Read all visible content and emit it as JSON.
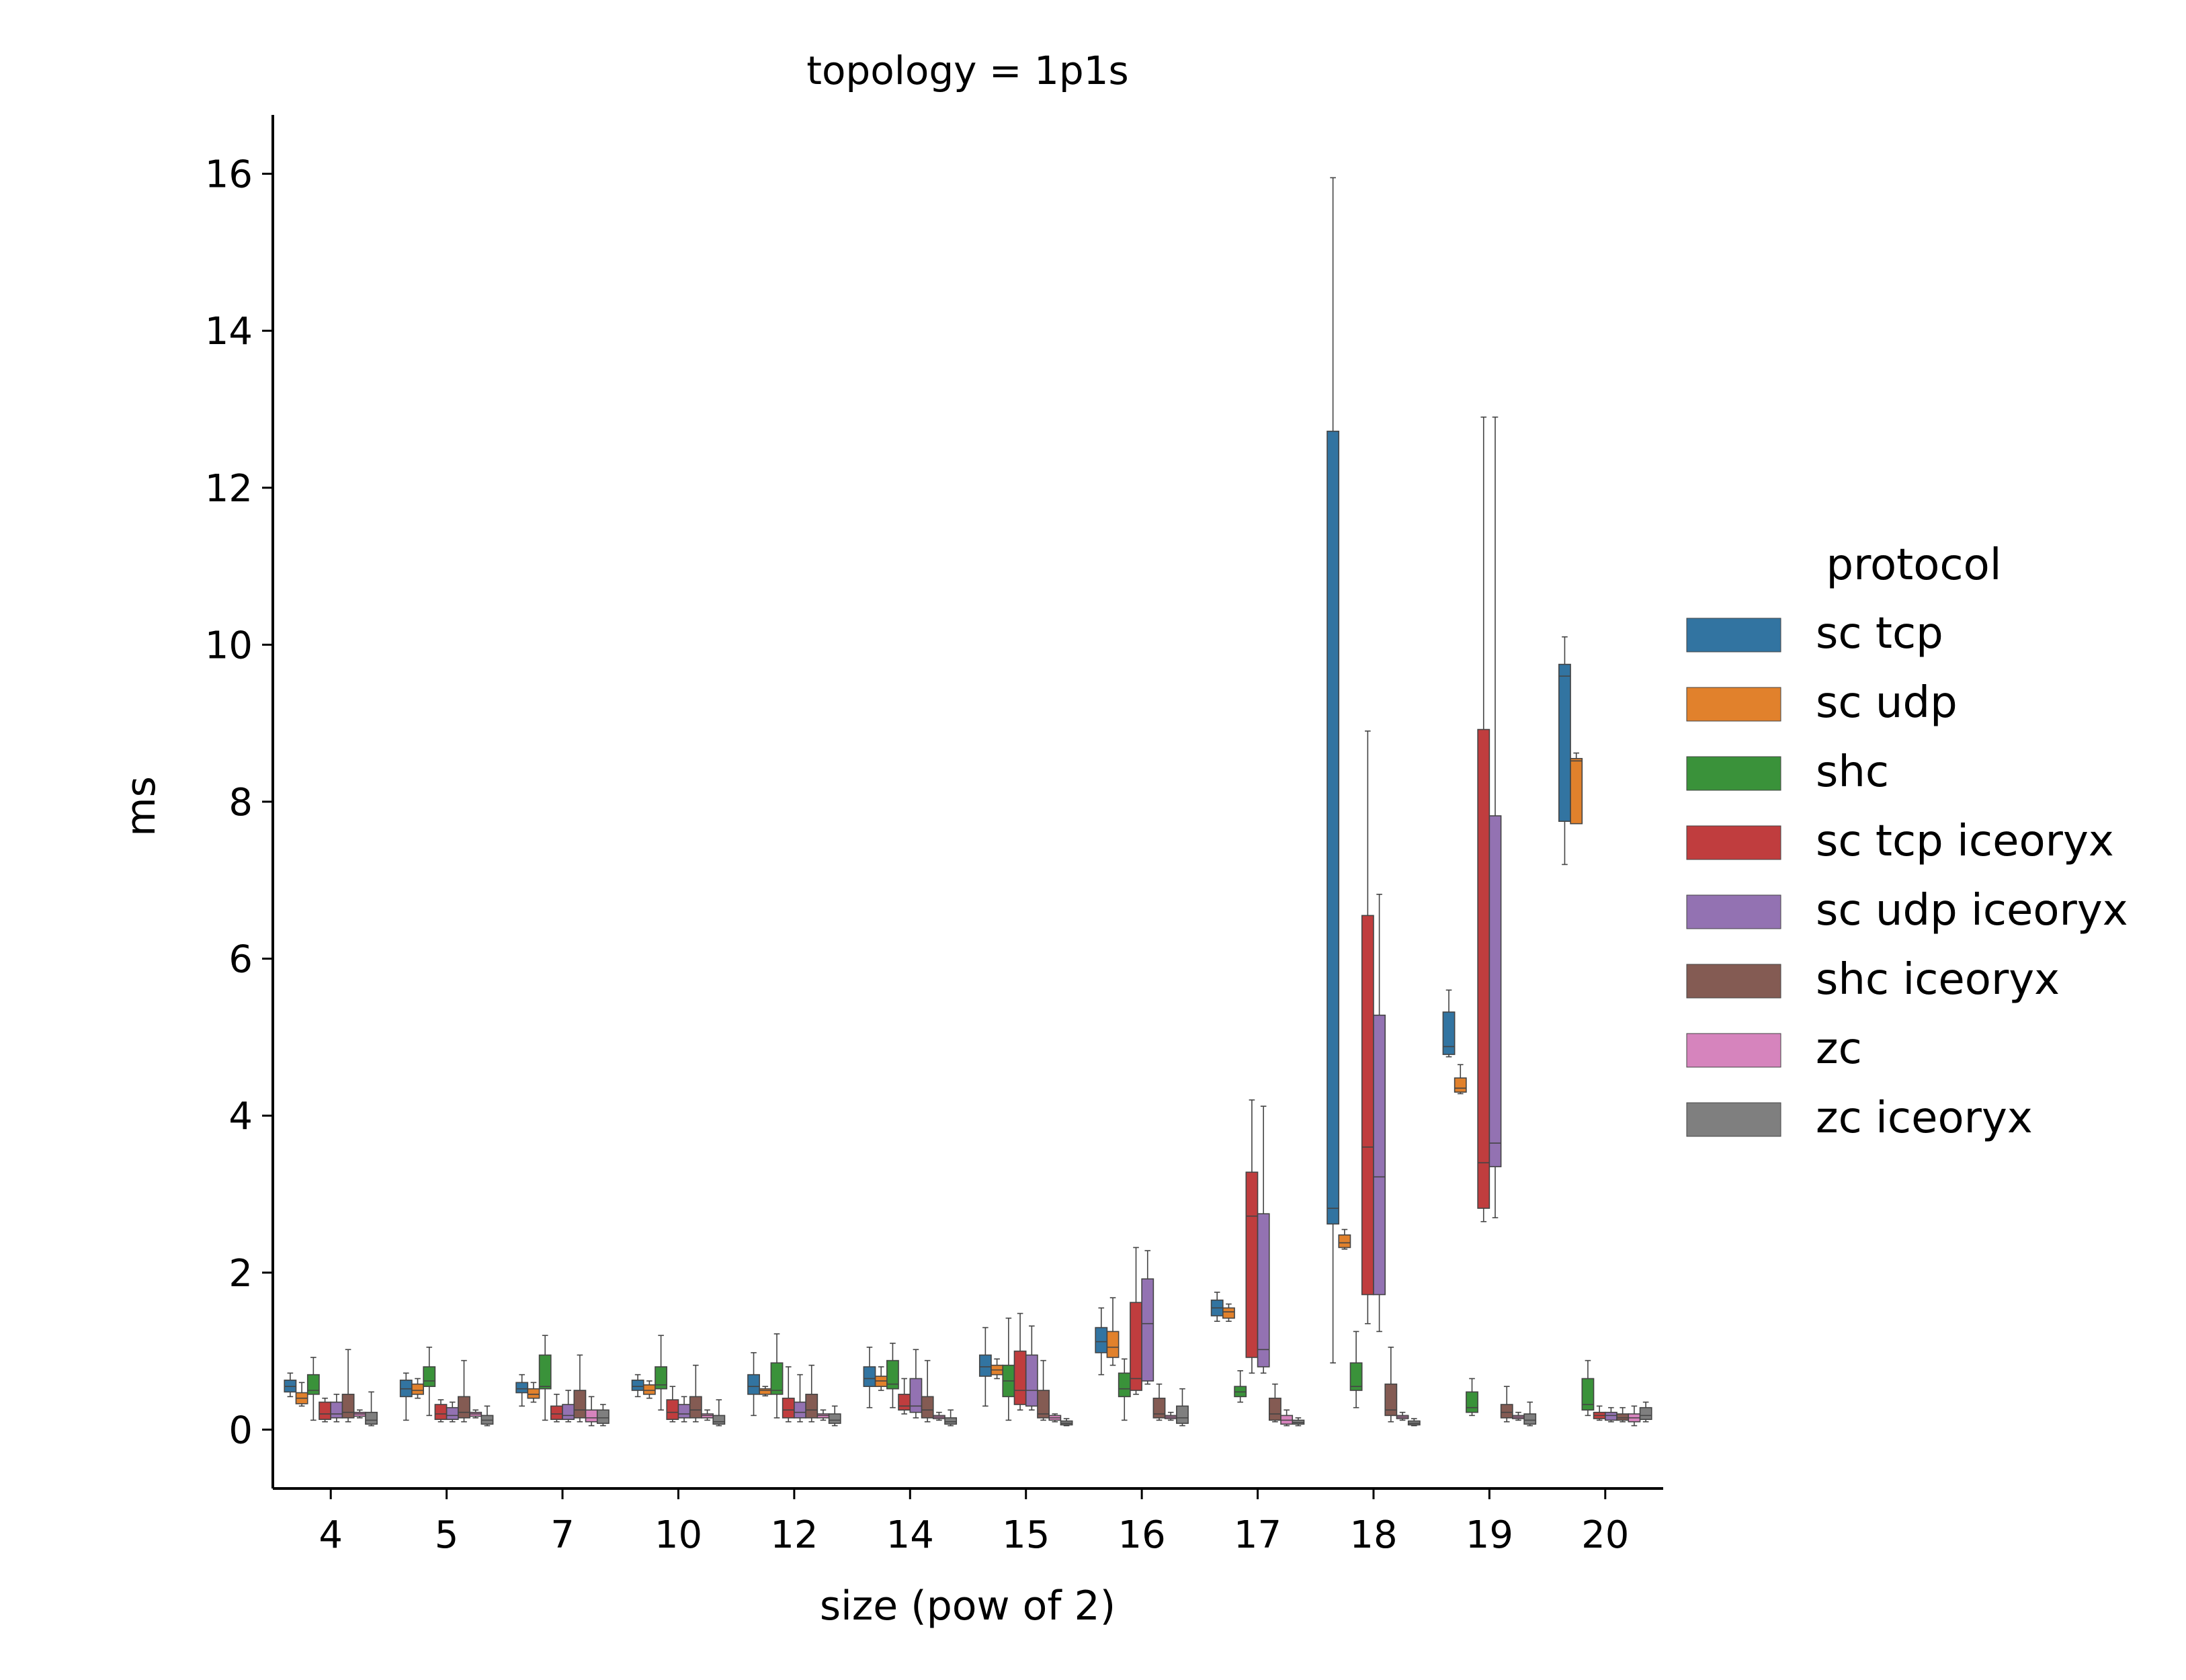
{
  "chart_data": {
    "type": "boxplot",
    "title": "topology = 1p1s",
    "xlabel": "size (pow of 2)",
    "ylabel": "ms",
    "ylim": [
      -0.75,
      16.75
    ],
    "yticks": [
      0,
      2,
      4,
      6,
      8,
      10,
      12,
      14,
      16
    ],
    "categories": [
      "4",
      "5",
      "7",
      "10",
      "12",
      "14",
      "15",
      "16",
      "17",
      "18",
      "19",
      "20"
    ],
    "legend": {
      "title": "protocol",
      "placement": "right"
    },
    "series": [
      {
        "name": "sc tcp",
        "color": "#3274a1",
        "boxes": [
          {
            "min": 0.42,
            "q1": 0.48,
            "median": 0.55,
            "q3": 0.63,
            "max": 0.72
          },
          {
            "min": 0.12,
            "q1": 0.42,
            "median": 0.52,
            "q3": 0.63,
            "max": 0.72
          },
          {
            "min": 0.3,
            "q1": 0.47,
            "median": 0.52,
            "q3": 0.6,
            "max": 0.7
          },
          {
            "min": 0.42,
            "q1": 0.5,
            "median": 0.55,
            "q3": 0.63,
            "max": 0.7
          },
          {
            "min": 0.18,
            "q1": 0.45,
            "median": 0.55,
            "q3": 0.7,
            "max": 0.98
          },
          {
            "min": 0.28,
            "q1": 0.55,
            "median": 0.65,
            "q3": 0.8,
            "max": 1.05
          },
          {
            "min": 0.3,
            "q1": 0.68,
            "median": 0.8,
            "q3": 0.95,
            "max": 1.3
          },
          {
            "min": 0.7,
            "q1": 0.98,
            "median": 1.12,
            "q3": 1.3,
            "max": 1.55
          },
          {
            "min": 1.38,
            "q1": 1.45,
            "median": 1.55,
            "q3": 1.65,
            "max": 1.75
          },
          {
            "min": 0.85,
            "q1": 2.62,
            "median": 2.82,
            "q3": 12.72,
            "max": 15.95
          },
          {
            "min": 4.75,
            "q1": 4.78,
            "median": 4.88,
            "q3": 5.32,
            "max": 5.6
          },
          {
            "min": 7.2,
            "q1": 7.75,
            "median": 9.6,
            "q3": 9.75,
            "max": 10.1
          }
        ]
      },
      {
        "name": "sc udp",
        "color": "#e1812c",
        "boxes": [
          {
            "min": 0.3,
            "q1": 0.33,
            "median": 0.4,
            "q3": 0.47,
            "max": 0.6
          },
          {
            "min": 0.4,
            "q1": 0.45,
            "median": 0.5,
            "q3": 0.58,
            "max": 0.65
          },
          {
            "min": 0.35,
            "q1": 0.4,
            "median": 0.45,
            "q3": 0.52,
            "max": 0.6
          },
          {
            "min": 0.4,
            "q1": 0.45,
            "median": 0.5,
            "q3": 0.57,
            "max": 0.62
          },
          {
            "min": 0.43,
            "q1": 0.45,
            "median": 0.5,
            "q3": 0.52,
            "max": 0.55
          },
          {
            "min": 0.5,
            "q1": 0.55,
            "median": 0.62,
            "q3": 0.68,
            "max": 0.8
          },
          {
            "min": 0.65,
            "q1": 0.7,
            "median": 0.76,
            "q3": 0.82,
            "max": 0.9
          },
          {
            "min": 0.82,
            "q1": 0.92,
            "median": 1.05,
            "q3": 1.25,
            "max": 1.68
          },
          {
            "min": 1.38,
            "q1": 1.42,
            "median": 1.5,
            "q3": 1.55,
            "max": 1.6
          },
          {
            "min": 2.3,
            "q1": 2.32,
            "median": 2.38,
            "q3": 2.48,
            "max": 2.55
          },
          {
            "min": 4.28,
            "q1": 4.3,
            "median": 4.35,
            "q3": 4.48,
            "max": 4.65
          },
          {
            "min": 7.72,
            "q1": 7.72,
            "median": 8.52,
            "q3": 8.55,
            "max": 8.62
          }
        ]
      },
      {
        "name": "shc",
        "color": "#3a923a",
        "boxes": [
          {
            "min": 0.12,
            "q1": 0.45,
            "median": 0.5,
            "q3": 0.7,
            "max": 0.92
          },
          {
            "min": 0.18,
            "q1": 0.55,
            "median": 0.62,
            "q3": 0.8,
            "max": 1.05
          },
          {
            "min": 0.12,
            "q1": 0.52,
            "median": 0.55,
            "q3": 0.95,
            "max": 1.2
          },
          {
            "min": 0.25,
            "q1": 0.52,
            "median": 0.57,
            "q3": 0.8,
            "max": 1.2
          },
          {
            "min": 0.15,
            "q1": 0.45,
            "median": 0.5,
            "q3": 0.85,
            "max": 1.22
          },
          {
            "min": 0.28,
            "q1": 0.52,
            "median": 0.58,
            "q3": 0.88,
            "max": 1.1
          },
          {
            "min": 0.12,
            "q1": 0.42,
            "median": 0.62,
            "q3": 0.82,
            "max": 1.42
          },
          {
            "min": 0.12,
            "q1": 0.42,
            "median": 0.52,
            "q3": 0.72,
            "max": 0.9
          },
          {
            "min": 0.35,
            "q1": 0.42,
            "median": 0.48,
            "q3": 0.55,
            "max": 0.75
          },
          {
            "min": 0.28,
            "q1": 0.5,
            "median": 0.55,
            "q3": 0.85,
            "max": 1.25
          },
          {
            "min": 0.18,
            "q1": 0.22,
            "median": 0.28,
            "q3": 0.48,
            "max": 0.65
          },
          {
            "min": 0.18,
            "q1": 0.25,
            "median": 0.32,
            "q3": 0.65,
            "max": 0.88
          }
        ]
      },
      {
        "name": "sc tcp iceoryx",
        "color": "#c03d3e",
        "boxes": [
          {
            "min": 0.1,
            "q1": 0.13,
            "median": 0.2,
            "q3": 0.35,
            "max": 0.4
          },
          {
            "min": 0.1,
            "q1": 0.13,
            "median": 0.2,
            "q3": 0.32,
            "max": 0.38
          },
          {
            "min": 0.1,
            "q1": 0.13,
            "median": 0.2,
            "q3": 0.3,
            "max": 0.45
          },
          {
            "min": 0.1,
            "q1": 0.13,
            "median": 0.22,
            "q3": 0.38,
            "max": 0.55
          },
          {
            "min": 0.1,
            "q1": 0.15,
            "median": 0.25,
            "q3": 0.4,
            "max": 0.8
          },
          {
            "min": 0.2,
            "q1": 0.25,
            "median": 0.3,
            "q3": 0.45,
            "max": 0.65
          },
          {
            "min": 0.25,
            "q1": 0.32,
            "median": 0.5,
            "q3": 1.0,
            "max": 1.48
          },
          {
            "min": 0.45,
            "q1": 0.5,
            "median": 0.65,
            "q3": 1.62,
            "max": 2.32
          },
          {
            "min": 0.72,
            "q1": 0.92,
            "median": 2.72,
            "q3": 3.28,
            "max": 4.2
          },
          {
            "min": 1.35,
            "q1": 1.72,
            "median": 3.6,
            "q3": 6.55,
            "max": 8.9
          },
          {
            "min": 2.65,
            "q1": 2.82,
            "median": 3.4,
            "q3": 8.92,
            "max": 12.9
          },
          {
            "min": 0.12,
            "q1": 0.14,
            "median": 0.18,
            "q3": 0.22,
            "max": 0.3
          }
        ]
      },
      {
        "name": "sc udp iceoryx",
        "color": "#9372b2",
        "boxes": [
          {
            "min": 0.1,
            "q1": 0.15,
            "median": 0.2,
            "q3": 0.35,
            "max": 0.45
          },
          {
            "min": 0.1,
            "q1": 0.13,
            "median": 0.18,
            "q3": 0.28,
            "max": 0.35
          },
          {
            "min": 0.1,
            "q1": 0.13,
            "median": 0.18,
            "q3": 0.32,
            "max": 0.5
          },
          {
            "min": 0.1,
            "q1": 0.15,
            "median": 0.2,
            "q3": 0.32,
            "max": 0.42
          },
          {
            "min": 0.1,
            "q1": 0.15,
            "median": 0.22,
            "q3": 0.35,
            "max": 0.7
          },
          {
            "min": 0.15,
            "q1": 0.22,
            "median": 0.3,
            "q3": 0.65,
            "max": 1.02
          },
          {
            "min": 0.25,
            "q1": 0.3,
            "median": 0.5,
            "q3": 0.95,
            "max": 1.32
          },
          {
            "min": 0.58,
            "q1": 0.62,
            "median": 1.35,
            "q3": 1.92,
            "max": 2.28
          },
          {
            "min": 0.72,
            "q1": 0.8,
            "median": 1.02,
            "q3": 2.75,
            "max": 4.12
          },
          {
            "min": 1.25,
            "q1": 1.72,
            "median": 3.22,
            "q3": 5.28,
            "max": 6.82
          },
          {
            "min": 2.7,
            "q1": 3.35,
            "median": 3.65,
            "q3": 7.82,
            "max": 12.9
          },
          {
            "min": 0.1,
            "q1": 0.12,
            "median": 0.18,
            "q3": 0.22,
            "max": 0.28
          }
        ]
      },
      {
        "name": "shc iceoryx",
        "color": "#845b53",
        "boxes": [
          {
            "min": 0.1,
            "q1": 0.15,
            "median": 0.22,
            "q3": 0.45,
            "max": 1.02
          },
          {
            "min": 0.1,
            "q1": 0.15,
            "median": 0.22,
            "q3": 0.42,
            "max": 0.88
          },
          {
            "min": 0.1,
            "q1": 0.15,
            "median": 0.25,
            "q3": 0.5,
            "max": 0.95
          },
          {
            "min": 0.1,
            "q1": 0.15,
            "median": 0.25,
            "q3": 0.42,
            "max": 0.82
          },
          {
            "min": 0.1,
            "q1": 0.15,
            "median": 0.25,
            "q3": 0.45,
            "max": 0.82
          },
          {
            "min": 0.1,
            "q1": 0.15,
            "median": 0.25,
            "q3": 0.42,
            "max": 0.88
          },
          {
            "min": 0.12,
            "q1": 0.15,
            "median": 0.2,
            "q3": 0.5,
            "max": 0.88
          },
          {
            "min": 0.12,
            "q1": 0.15,
            "median": 0.2,
            "q3": 0.4,
            "max": 0.58
          },
          {
            "min": 0.1,
            "q1": 0.12,
            "median": 0.2,
            "q3": 0.4,
            "max": 0.58
          },
          {
            "min": 0.1,
            "q1": 0.18,
            "median": 0.25,
            "q3": 0.58,
            "max": 1.05
          },
          {
            "min": 0.1,
            "q1": 0.15,
            "median": 0.22,
            "q3": 0.32,
            "max": 0.55
          },
          {
            "min": 0.1,
            "q1": 0.12,
            "median": 0.15,
            "q3": 0.2,
            "max": 0.28
          }
        ]
      },
      {
        "name": "zc",
        "color": "#d684bd",
        "boxes": [
          {
            "min": 0.15,
            "q1": 0.17,
            "median": 0.2,
            "q3": 0.22,
            "max": 0.25
          },
          {
            "min": 0.15,
            "q1": 0.17,
            "median": 0.2,
            "q3": 0.22,
            "max": 0.25
          },
          {
            "min": 0.05,
            "q1": 0.1,
            "median": 0.15,
            "q3": 0.25,
            "max": 0.42
          },
          {
            "min": 0.12,
            "q1": 0.15,
            "median": 0.18,
            "q3": 0.2,
            "max": 0.25
          },
          {
            "min": 0.12,
            "q1": 0.15,
            "median": 0.18,
            "q3": 0.2,
            "max": 0.25
          },
          {
            "min": 0.12,
            "q1": 0.14,
            "median": 0.16,
            "q3": 0.18,
            "max": 0.22
          },
          {
            "min": 0.1,
            "q1": 0.12,
            "median": 0.15,
            "q3": 0.18,
            "max": 0.2
          },
          {
            "min": 0.12,
            "q1": 0.14,
            "median": 0.16,
            "q3": 0.18,
            "max": 0.22
          },
          {
            "min": 0.05,
            "q1": 0.07,
            "median": 0.12,
            "q3": 0.18,
            "max": 0.25
          },
          {
            "min": 0.12,
            "q1": 0.14,
            "median": 0.16,
            "q3": 0.18,
            "max": 0.22
          },
          {
            "min": 0.12,
            "q1": 0.14,
            "median": 0.16,
            "q3": 0.18,
            "max": 0.22
          },
          {
            "min": 0.05,
            "q1": 0.1,
            "median": 0.15,
            "q3": 0.2,
            "max": 0.3
          }
        ]
      },
      {
        "name": "zc iceoryx",
        "color": "#7f7f7f",
        "boxes": [
          {
            "min": 0.05,
            "q1": 0.07,
            "median": 0.12,
            "q3": 0.22,
            "max": 0.48
          },
          {
            "min": 0.05,
            "q1": 0.07,
            "median": 0.12,
            "q3": 0.18,
            "max": 0.3
          },
          {
            "min": 0.05,
            "q1": 0.08,
            "median": 0.15,
            "q3": 0.25,
            "max": 0.32
          },
          {
            "min": 0.05,
            "q1": 0.07,
            "median": 0.1,
            "q3": 0.18,
            "max": 0.38
          },
          {
            "min": 0.05,
            "q1": 0.08,
            "median": 0.12,
            "q3": 0.2,
            "max": 0.3
          },
          {
            "min": 0.05,
            "q1": 0.07,
            "median": 0.1,
            "q3": 0.15,
            "max": 0.25
          },
          {
            "min": 0.05,
            "q1": 0.06,
            "median": 0.08,
            "q3": 0.11,
            "max": 0.14
          },
          {
            "min": 0.05,
            "q1": 0.08,
            "median": 0.15,
            "q3": 0.3,
            "max": 0.52
          },
          {
            "min": 0.05,
            "q1": 0.07,
            "median": 0.09,
            "q3": 0.12,
            "max": 0.15
          },
          {
            "min": 0.05,
            "q1": 0.06,
            "median": 0.08,
            "q3": 0.11,
            "max": 0.14
          },
          {
            "min": 0.05,
            "q1": 0.07,
            "median": 0.12,
            "q3": 0.2,
            "max": 0.35
          },
          {
            "min": 0.1,
            "q1": 0.13,
            "median": 0.18,
            "q3": 0.28,
            "max": 0.35
          }
        ]
      }
    ]
  }
}
